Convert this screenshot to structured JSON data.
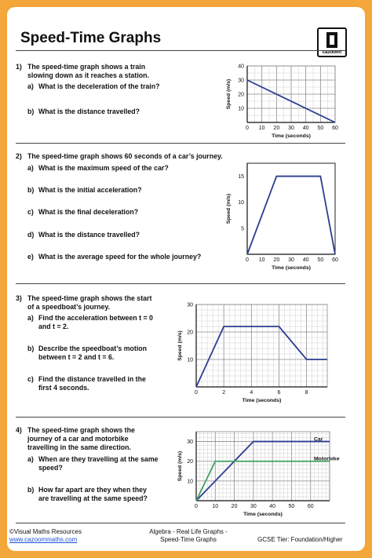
{
  "page": {
    "title": "Speed-Time Graphs",
    "logo_text": "cazoom!"
  },
  "questions": [
    {
      "number": "1)",
      "text": [
        "The speed-time graph shows a train",
        "slowing down as it reaches a station."
      ],
      "parts": [
        {
          "letter": "a)",
          "lines": [
            "What is the deceleration of the train?"
          ]
        },
        {
          "letter": "b)",
          "lines": [
            "What is the distance travelled?"
          ]
        }
      ]
    },
    {
      "number": "2)",
      "text": [
        "The speed-time graph shows 60 seconds of a car’s journey."
      ],
      "parts": [
        {
          "letter": "a)",
          "lines": [
            "What is the maximum speed of the car?"
          ]
        },
        {
          "letter": "b)",
          "lines": [
            "What is the initial acceleration?"
          ]
        },
        {
          "letter": "c)",
          "lines": [
            "What is the final deceleration?"
          ]
        },
        {
          "letter": "d)",
          "lines": [
            "What is the distance travelled?"
          ]
        },
        {
          "letter": "e)",
          "lines": [
            "What is the average speed for the whole journey?"
          ]
        }
      ]
    },
    {
      "number": "3)",
      "text": [
        "The speed-time graph shows the start",
        "of a speedboat’s journey."
      ],
      "parts": [
        {
          "letter": "a)",
          "lines": [
            "Find the acceleration between t = 0",
            "and t = 2."
          ]
        },
        {
          "letter": "b)",
          "lines": [
            "Describe the speedboat’s motion",
            "between t = 2 and t = 6."
          ]
        },
        {
          "letter": "c)",
          "lines": [
            "Find the distance travelled in the",
            "first 4 seconds."
          ]
        }
      ]
    },
    {
      "number": "4)",
      "text": [
        "The speed-time graph shows the",
        "journey of a car and motorbike",
        "travelling in the same direction."
      ],
      "parts": [
        {
          "letter": "a)",
          "lines": [
            "When are they travelling at the same",
            "speed?"
          ]
        },
        {
          "letter": "b)",
          "lines": [
            "How far apart are they when they",
            "are travelling at the same speed?"
          ]
        }
      ]
    }
  ],
  "chart_data": [
    {
      "type": "line",
      "xlabel": "Time (seconds)",
      "ylabel": "Speed (m/s)",
      "xlim": [
        0,
        60
      ],
      "ylim": [
        0,
        40
      ],
      "xticks": [
        0,
        10,
        20,
        30,
        40,
        50,
        60
      ],
      "yticks": [
        0,
        10,
        20,
        30,
        40
      ],
      "grid": true,
      "series": [
        {
          "x": [
            0,
            60
          ],
          "y": [
            30,
            0
          ],
          "color": "#2b3d91"
        }
      ]
    },
    {
      "type": "line",
      "xlabel": "Time (seconds)",
      "ylabel": "Speed (m/s)",
      "xlim": [
        0,
        60
      ],
      "ylim": [
        0,
        17.5
      ],
      "xticks": [
        0,
        10,
        20,
        30,
        40,
        50,
        60
      ],
      "yticks": [
        0,
        5,
        10,
        15
      ],
      "grid": false,
      "series": [
        {
          "x": [
            0,
            20,
            50,
            60
          ],
          "y": [
            0,
            15,
            15,
            0
          ],
          "color": "#2b3d91"
        }
      ]
    },
    {
      "type": "line",
      "xlabel": "Time (seconds)",
      "ylabel": "Speed (m/s)",
      "xlim": [
        0,
        9.5
      ],
      "ylim": [
        0,
        30
      ],
      "xticks": [
        0,
        2,
        4,
        6,
        8
      ],
      "yticks": [
        0,
        10,
        20,
        30
      ],
      "grid": true,
      "series": [
        {
          "x": [
            0,
            2,
            6,
            8,
            9.5
          ],
          "y": [
            0,
            22,
            22,
            10,
            10
          ],
          "color": "#2b3d91"
        }
      ]
    },
    {
      "type": "line",
      "xlabel": "Time (seconds)",
      "ylabel": "Speed (m/s)",
      "xlim": [
        0,
        70
      ],
      "ylim": [
        0,
        35
      ],
      "xticks": [
        0,
        10,
        20,
        30,
        40,
        50,
        60
      ],
      "yticks": [
        0,
        10,
        20,
        30
      ],
      "grid": true,
      "series": [
        {
          "name": "Car",
          "x": [
            0,
            30,
            70
          ],
          "y": [
            0,
            30,
            30
          ],
          "color": "#2b3d91"
        },
        {
          "name": "Motorbike",
          "x": [
            0,
            10,
            70
          ],
          "y": [
            0,
            20,
            20
          ],
          "color": "#3da35d"
        }
      ]
    }
  ],
  "footer": {
    "left_line1": "©Visual Maths Resources",
    "left_link": "www.cazoommaths.com",
    "center_line1": "Algebra - Real Life Graphs -",
    "center_line2": "Speed-Time Graphs",
    "right": "GCSE Tier: Foundation/Higher"
  }
}
